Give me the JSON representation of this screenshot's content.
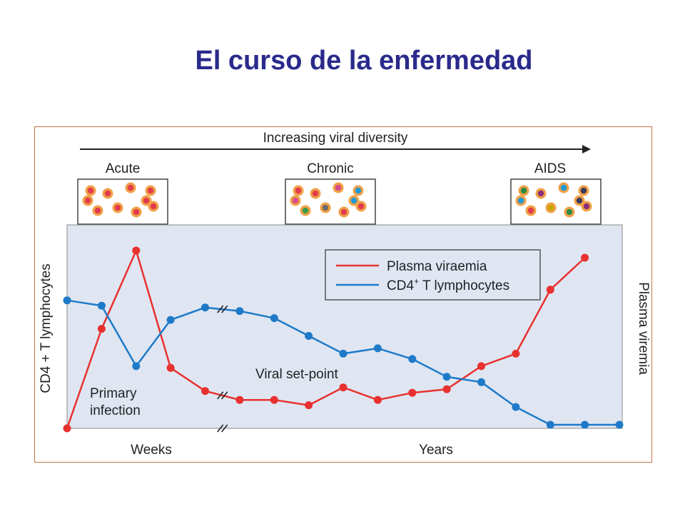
{
  "slide": {
    "title": "El curso de la enfermedad"
  },
  "chart_data": {
    "type": "line",
    "top_label": "Increasing viral diversity",
    "stages": [
      "Acute",
      "Chronic",
      "AIDS"
    ],
    "xlabel_left": "Weeks",
    "xlabel_right": "Years",
    "ylabel_left": "CD4 + T lymphocytes",
    "ylabel_right": "Plasma viremia",
    "annotations": [
      "Primary",
      "infection",
      "Viral set-point"
    ],
    "axis_break_marks": [
      "x-axis",
      "CD4 series",
      "viraemia series"
    ],
    "x": [
      0,
      1,
      2,
      3,
      4,
      5,
      6,
      7,
      8,
      9,
      10,
      11,
      12,
      13,
      14,
      15,
      16
    ],
    "ylim": [
      0,
      100
    ],
    "series": [
      {
        "name": "Plasma viraemia",
        "color": "#e8312f",
        "values": [
          0,
          56,
          100,
          34,
          21,
          16,
          16,
          13,
          23,
          16,
          20,
          22,
          35,
          42,
          78,
          96,
          null
        ],
        "break_after_index": 4
      },
      {
        "name": "CD4+ T lymphocytes",
        "color": "#1e7ac8",
        "values": [
          72,
          69,
          35,
          61,
          68,
          66,
          62,
          52,
          42,
          45,
          39,
          29,
          26,
          12,
          2,
          2,
          2
        ],
        "break_after_index": 4
      }
    ],
    "legend": {
      "entries": [
        "Plasma viraemia",
        "CD4",
        "+",
        " T lymphocytes"
      ],
      "placement": "top-right"
    },
    "cell_colors": {
      "outer_ring": "#f0a046",
      "acute_core": "#e23b4e",
      "chronic_cores": [
        "#e23b4e",
        "#e23b4e",
        "#d64b8c",
        "#1e9ad6",
        "#3a9b4a",
        "#6b6b6b"
      ],
      "aids_cores": [
        "#2c8b45",
        "#8a2f7d",
        "#1e9ad6",
        "#3a3a5a",
        "#e23b4e",
        "#c8a400"
      ]
    },
    "colors": {
      "plot_background": "#dfe6f2",
      "frame_border": "#c8734a",
      "arrow": "#222222",
      "cell_box_border": "#444444"
    }
  }
}
